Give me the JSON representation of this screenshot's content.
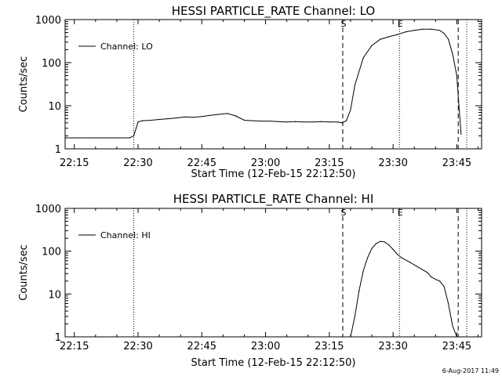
{
  "footer": {
    "date_text": "6-Aug-2017 11:49"
  },
  "chart_data": [
    {
      "type": "line",
      "title": "HESSI PARTICLE_RATE Channel: LO",
      "xlabel": "Start Time (12-Feb-15 22:12:50)",
      "ylabel": "Counts/sec",
      "y_scale": "log",
      "ylim": [
        1,
        1000
      ],
      "xlim": [
        "22:12:50",
        "23:50:50"
      ],
      "x_ticks": [
        "22:15",
        "22:30",
        "22:45",
        "23:00",
        "23:15",
        "23:30",
        "23:45"
      ],
      "y_ticks": [
        "1",
        "10",
        "100",
        "1000"
      ],
      "legend": {
        "position": "top-left",
        "entries": [
          "Channel: LO"
        ]
      },
      "grid": false,
      "markers": [
        {
          "label": "",
          "time": "22:29:00",
          "style": "dotted"
        },
        {
          "label": "S",
          "time": "23:18:10",
          "style": "dashed"
        },
        {
          "label": "E",
          "time": "23:31:30",
          "style": "dotted"
        },
        {
          "label": "",
          "time": "23:45:20",
          "style": "dashed"
        },
        {
          "label": "",
          "time": "23:47:20",
          "style": "dotted"
        }
      ],
      "series": [
        {
          "name": "Channel: LO",
          "x": [
            "22:13",
            "22:16",
            "22:19",
            "22:22",
            "22:25",
            "22:28",
            "22:29",
            "22:30",
            "22:31",
            "22:33",
            "22:35",
            "22:37",
            "22:39",
            "22:41",
            "22:43",
            "22:45",
            "22:47",
            "22:49",
            "22:51",
            "22:53",
            "22:55",
            "22:57",
            "22:59",
            "23:01",
            "23:03",
            "23:05",
            "23:07",
            "23:09",
            "23:11",
            "23:13",
            "23:15",
            "23:17",
            "23:18",
            "23:19",
            "23:20",
            "23:21",
            "23:23",
            "23:25",
            "23:27",
            "23:29",
            "23:31",
            "23:33",
            "23:35",
            "23:37",
            "23:39",
            "23:41",
            "23:42",
            "23:43",
            "23:44",
            "23:45",
            "23:45:30",
            "23:46"
          ],
          "y": [
            1.8,
            1.8,
            1.8,
            1.8,
            1.8,
            1.8,
            2.0,
            4.2,
            4.5,
            4.6,
            4.8,
            5.0,
            5.2,
            5.5,
            5.4,
            5.6,
            6.0,
            6.3,
            6.6,
            5.8,
            4.6,
            4.5,
            4.4,
            4.4,
            4.3,
            4.2,
            4.3,
            4.2,
            4.2,
            4.3,
            4.2,
            4.2,
            4.0,
            4.5,
            8.0,
            30,
            130,
            250,
            350,
            400,
            450,
            520,
            560,
            600,
            600,
            560,
            480,
            350,
            160,
            50,
            10,
            2.2
          ]
        }
      ]
    },
    {
      "type": "line",
      "title": "HESSI PARTICLE_RATE Channel: HI",
      "xlabel": "Start Time (12-Feb-15 22:12:50)",
      "ylabel": "Counts/sec",
      "y_scale": "log",
      "ylim": [
        1,
        1000
      ],
      "xlim": [
        "22:12:50",
        "23:50:50"
      ],
      "x_ticks": [
        "22:15",
        "22:30",
        "22:45",
        "23:00",
        "23:15",
        "23:30",
        "23:45"
      ],
      "y_ticks": [
        "1",
        "10",
        "100",
        "1000"
      ],
      "legend": {
        "position": "top-left",
        "entries": [
          "Channel: HI"
        ]
      },
      "grid": false,
      "markers": [
        {
          "label": "",
          "time": "22:29:00",
          "style": "dotted"
        },
        {
          "label": "S",
          "time": "23:18:10",
          "style": "dashed"
        },
        {
          "label": "E",
          "time": "23:31:30",
          "style": "dotted"
        },
        {
          "label": "",
          "time": "23:45:20",
          "style": "dashed"
        },
        {
          "label": "",
          "time": "23:47:20",
          "style": "dotted"
        }
      ],
      "series": [
        {
          "name": "Channel: HI",
          "x": [
            "23:20",
            "23:21",
            "23:22",
            "23:23",
            "23:24",
            "23:25",
            "23:26",
            "23:27",
            "23:28",
            "23:29",
            "23:30",
            "23:31",
            "23:32",
            "23:34",
            "23:36",
            "23:38",
            "23:39",
            "23:40",
            "23:41",
            "23:42",
            "23:43",
            "23:44",
            "23:45"
          ],
          "y": [
            1,
            3,
            12,
            35,
            70,
            115,
            150,
            170,
            165,
            140,
            110,
            85,
            70,
            55,
            42,
            32,
            25,
            22,
            20,
            15,
            6,
            1.8,
            1
          ]
        }
      ]
    }
  ]
}
